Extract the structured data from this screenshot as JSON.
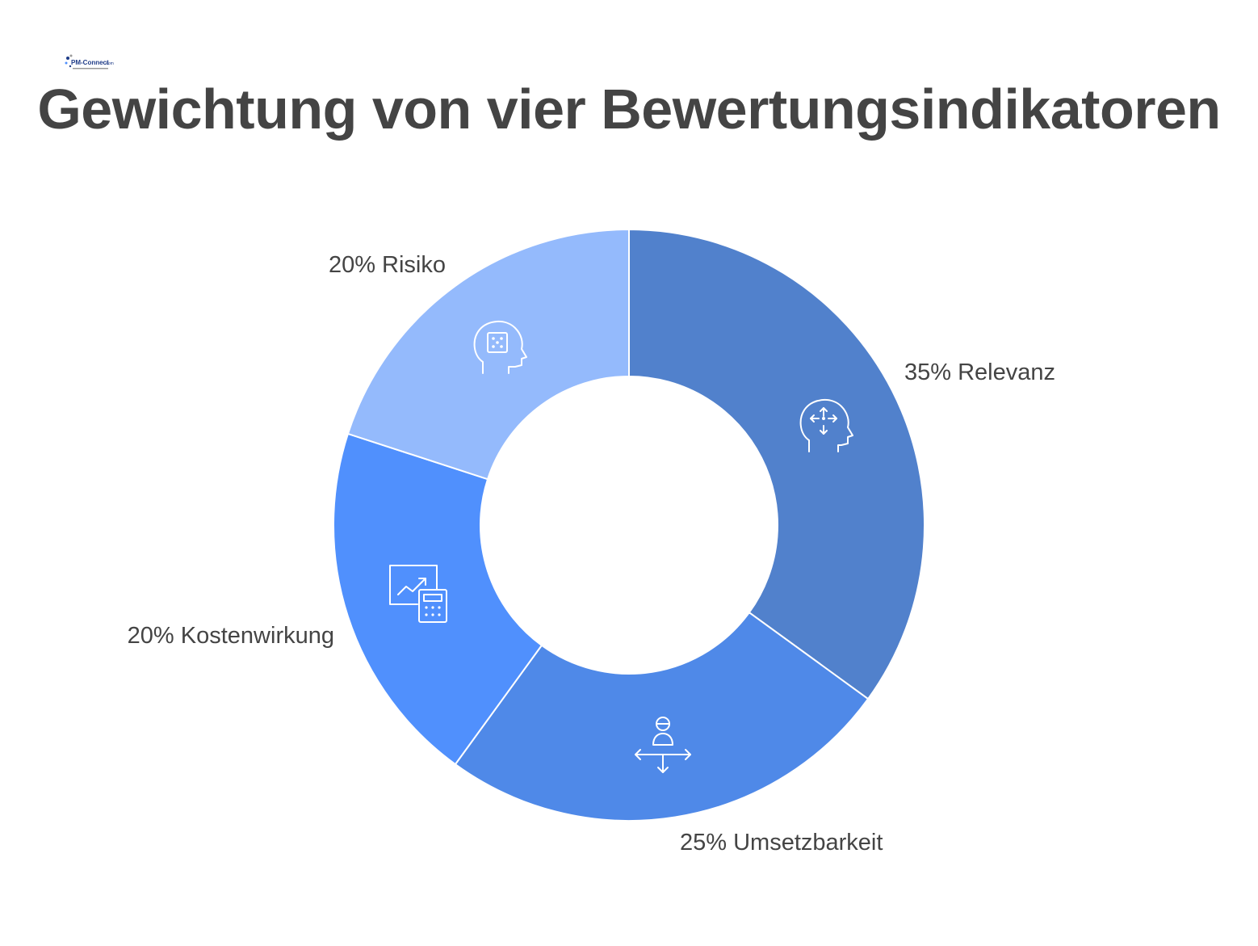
{
  "title": "Gewichtung von vier Bewertungsindikatoren",
  "logo": {
    "text": "PM-Connect.com",
    "colors": [
      "#1f3c88",
      "#9a9a9a"
    ]
  },
  "colors": {
    "title": "#444444",
    "label": "#444444",
    "slice_colors": [
      "#5181cc",
      "#4f89e8",
      "#5090fd",
      "#94bafc"
    ]
  },
  "chart_data": {
    "type": "pie",
    "donut": true,
    "title": "Gewichtung von vier Bewertungsindikatoren",
    "slices": [
      {
        "label": "35% Relevanz",
        "value": 35,
        "icon": "head-arrows-icon"
      },
      {
        "label": "25% Umsetzbarkeit",
        "value": 25,
        "icon": "person-crossroads-icon"
      },
      {
        "label": "20% Kostenwirkung",
        "value": 20,
        "icon": "chart-calculator-icon"
      },
      {
        "label": "20% Risiko",
        "value": 20,
        "icon": "head-dice-icon"
      }
    ]
  }
}
